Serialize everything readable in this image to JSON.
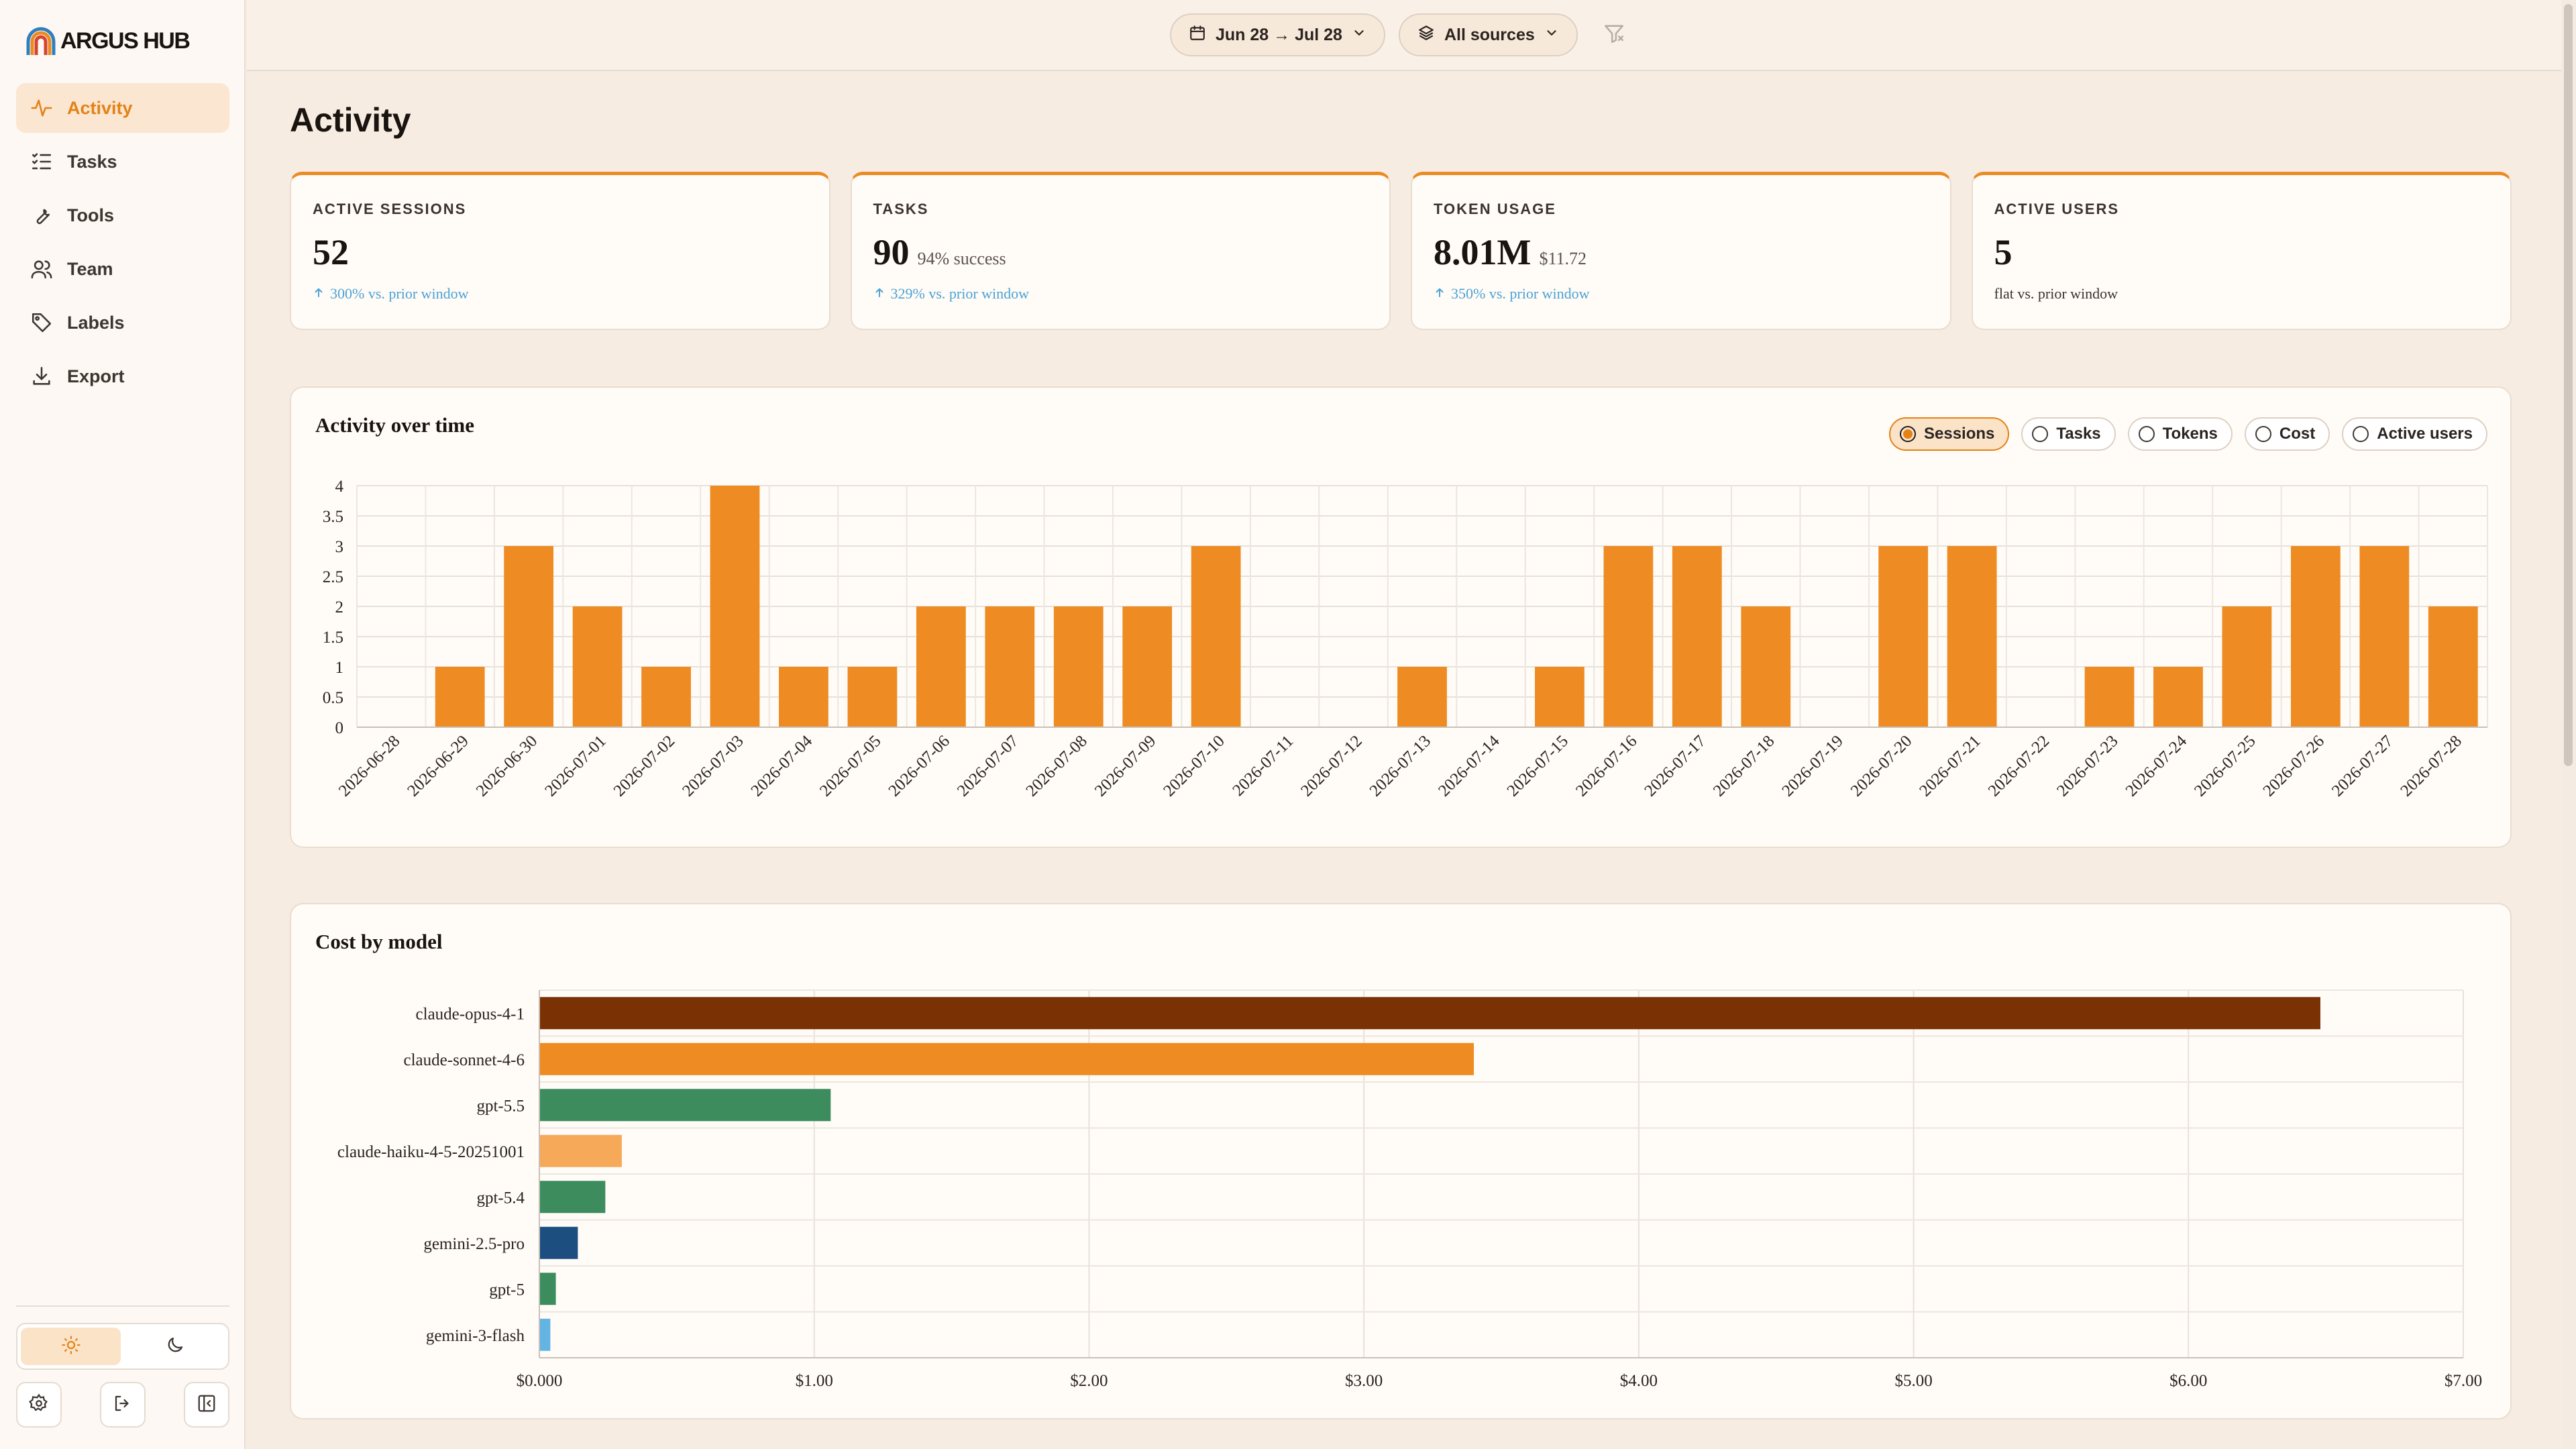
{
  "app": {
    "name": "ARGUS HUB"
  },
  "nav": [
    {
      "label": "Activity",
      "icon": "activity-icon",
      "active": true
    },
    {
      "label": "Tasks",
      "icon": "tasks-icon",
      "active": false
    },
    {
      "label": "Tools",
      "icon": "wrench-icon",
      "active": false
    },
    {
      "label": "Team",
      "icon": "users-icon",
      "active": false
    },
    {
      "label": "Labels",
      "icon": "tag-icon",
      "active": false
    },
    {
      "label": "Export",
      "icon": "download-icon",
      "active": false
    }
  ],
  "theme": {
    "selected": "light"
  },
  "filters": {
    "date_range": "Jun 28 → Jul 28",
    "sources": "All sources"
  },
  "page": {
    "title": "Activity"
  },
  "stats": [
    {
      "label": "ACTIVE SESSIONS",
      "value": "52",
      "sub": "",
      "change": "300% vs. prior window",
      "trend": "up"
    },
    {
      "label": "TASKS",
      "value": "90",
      "sub": "94% success",
      "change": "329% vs. prior window",
      "trend": "up"
    },
    {
      "label": "TOKEN USAGE",
      "value": "8.01M",
      "sub": "$11.72",
      "change": "350% vs. prior window",
      "trend": "up"
    },
    {
      "label": "ACTIVE USERS",
      "value": "5",
      "sub": "",
      "change": "flat vs. prior window",
      "trend": "flat"
    }
  ],
  "activity_panel": {
    "title": "Activity over time",
    "metrics": [
      "Sessions",
      "Tasks",
      "Tokens",
      "Cost",
      "Active users"
    ],
    "selected_metric": "Sessions"
  },
  "cost_panel": {
    "title": "Cost by model"
  },
  "colors": {
    "accent": "#ea8b24",
    "up": "#4ba3d6"
  },
  "chart_data": [
    {
      "type": "bar",
      "title": "Activity over time",
      "categories": [
        "2026-06-28",
        "2026-06-29",
        "2026-06-30",
        "2026-07-01",
        "2026-07-02",
        "2026-07-03",
        "2026-07-04",
        "2026-07-05",
        "2026-07-06",
        "2026-07-07",
        "2026-07-08",
        "2026-07-09",
        "2026-07-10",
        "2026-07-11",
        "2026-07-12",
        "2026-07-13",
        "2026-07-14",
        "2026-07-15",
        "2026-07-16",
        "2026-07-17",
        "2026-07-18",
        "2026-07-19",
        "2026-07-20",
        "2026-07-21",
        "2026-07-22",
        "2026-07-23",
        "2026-07-24",
        "2026-07-25",
        "2026-07-26",
        "2026-07-27",
        "2026-07-28"
      ],
      "values": [
        0,
        1,
        3,
        2,
        1,
        4,
        1,
        1,
        2,
        2,
        2,
        2,
        3,
        0,
        0,
        1,
        0,
        1,
        3,
        3,
        2,
        0,
        3,
        3,
        0,
        1,
        1,
        2,
        3,
        3,
        2
      ],
      "ylim": [
        0,
        4
      ],
      "yticks": [
        0,
        0.5,
        1,
        1.5,
        2,
        2.5,
        3,
        3.5,
        4
      ],
      "grid": true,
      "color": "#ee8b22"
    },
    {
      "type": "bar",
      "orientation": "horizontal",
      "title": "Cost by model",
      "categories": [
        "claude-opus-4-1",
        "claude-sonnet-4-6",
        "gpt-5.5",
        "claude-haiku-4-5-20251001",
        "gpt-5.4",
        "gemini-2.5-pro",
        "gpt-5",
        "gemini-3-flash"
      ],
      "values": [
        6.48,
        3.4,
        1.06,
        0.3,
        0.24,
        0.14,
        0.06,
        0.04
      ],
      "colors": [
        "#7a3104",
        "#ee8b22",
        "#3c8c5e",
        "#f5a959",
        "#3c8c5e",
        "#1c4f7f",
        "#3c8c5e",
        "#63b4e2"
      ],
      "xlim": [
        0,
        7
      ],
      "xticks": [
        "$0.000",
        "$1.00",
        "$2.00",
        "$3.00",
        "$4.00",
        "$5.00",
        "$6.00",
        "$7.00"
      ],
      "grid": true
    }
  ]
}
